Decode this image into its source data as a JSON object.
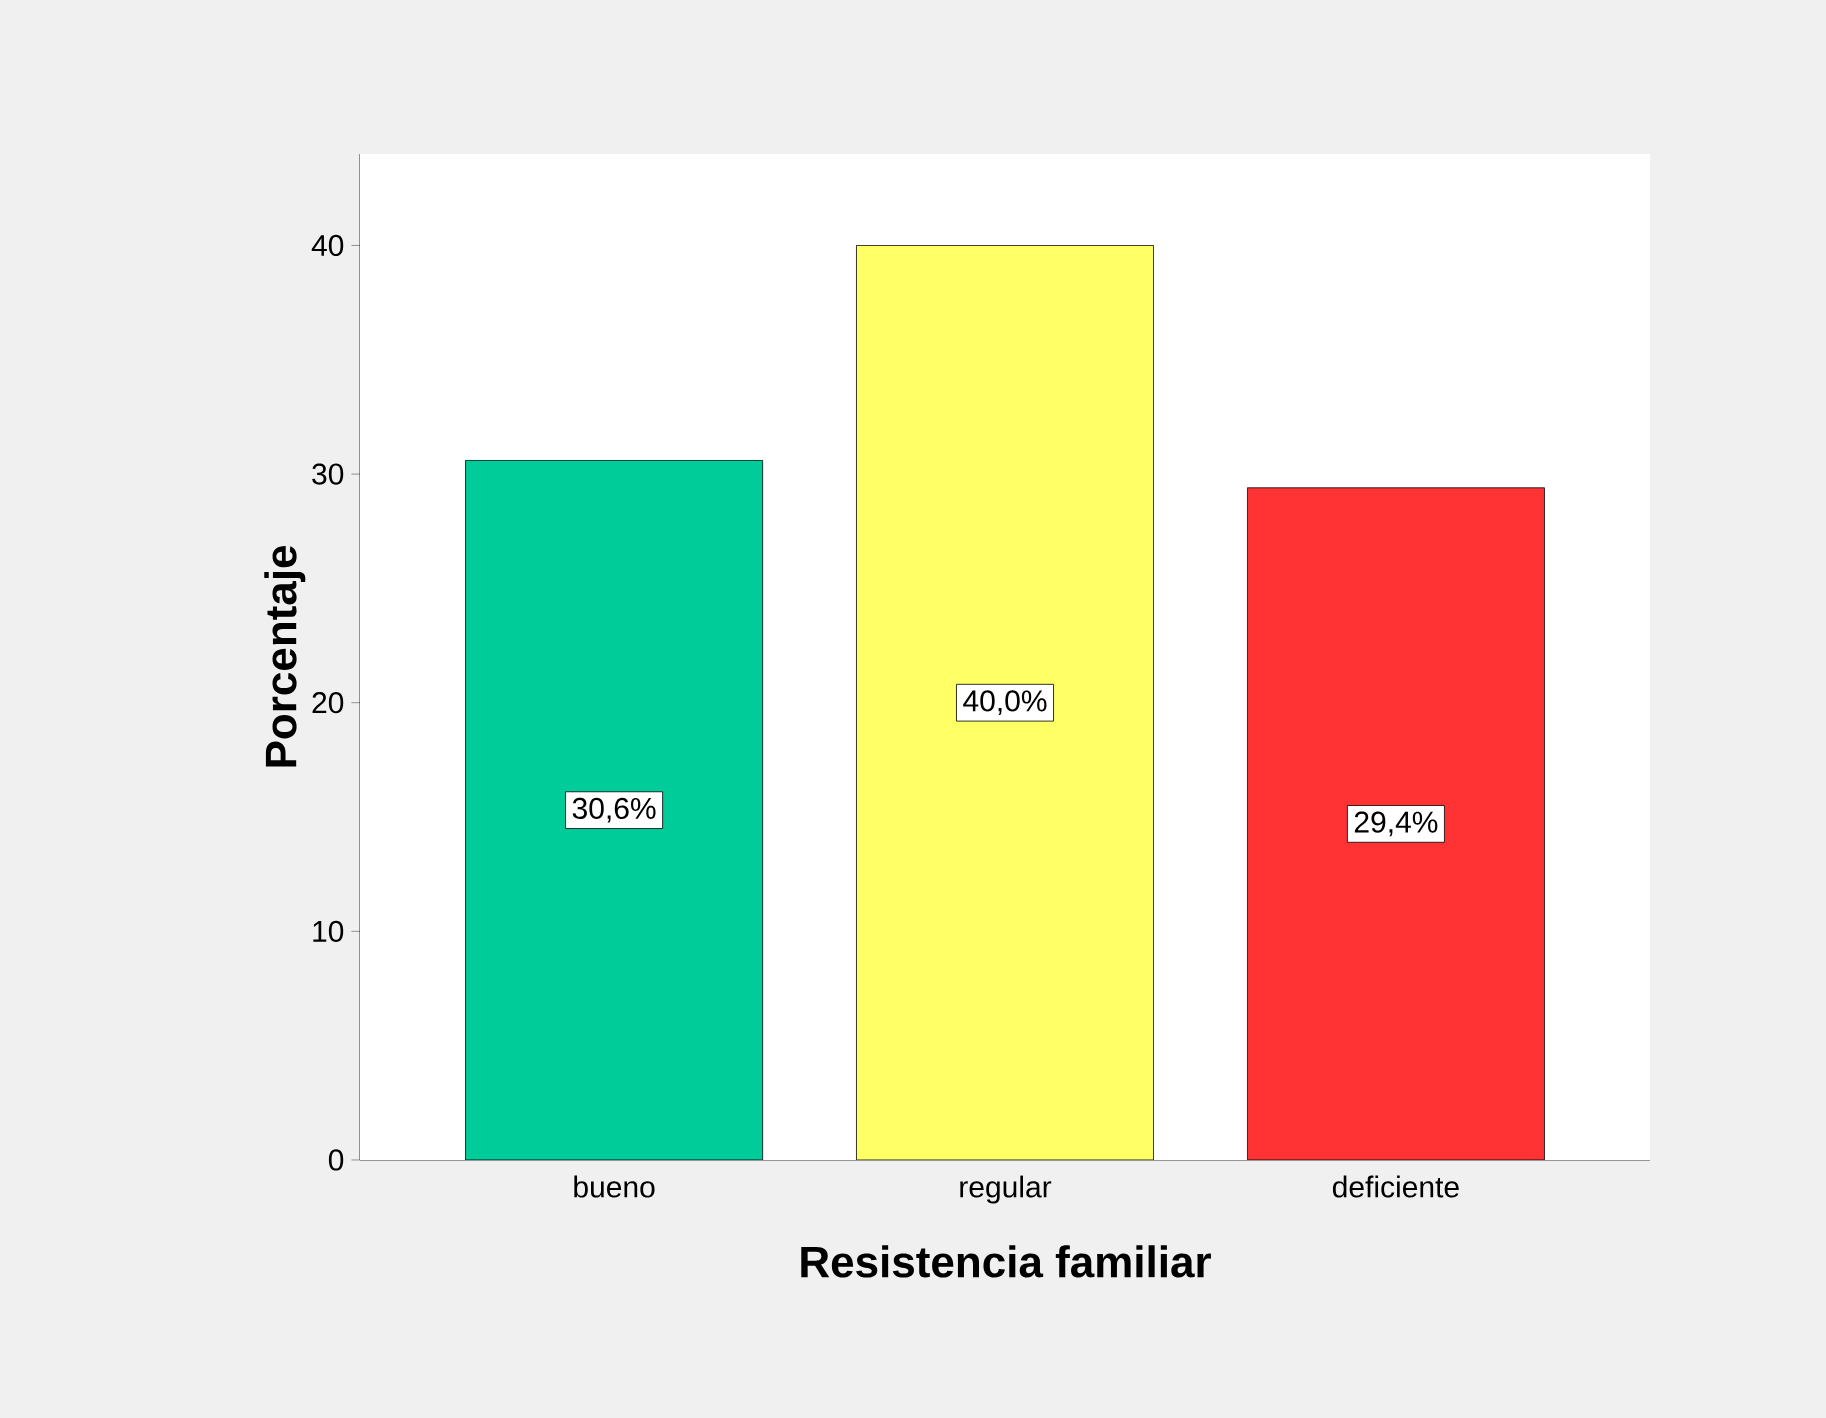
{
  "chart_data": {
    "type": "bar",
    "xlabel": "Resistencia familiar",
    "ylabel": "Porcentaje",
    "categories": [
      "bueno",
      "regular",
      "deficiente"
    ],
    "values": [
      30.6,
      40.0,
      29.4
    ],
    "colors": [
      "#00cc99",
      "#ffff66",
      "#ff3333"
    ],
    "value_labels": [
      "30,6%",
      "40,0%",
      "29,4%"
    ],
    "ylim": [
      0,
      44
    ],
    "yticks": [
      0,
      10,
      20,
      30,
      40
    ],
    "grid": false
  }
}
